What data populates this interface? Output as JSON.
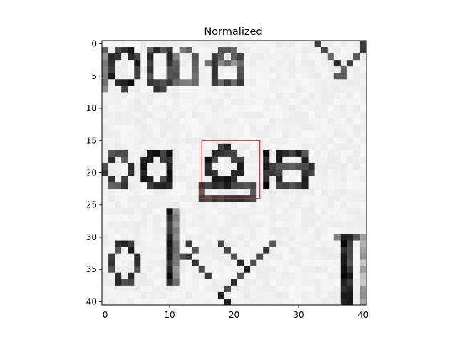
{
  "chart_data": {
    "type": "heatmap",
    "title": "Normalized",
    "xlabel": "",
    "ylabel": "",
    "x_range": [
      -0.5,
      40.5
    ],
    "y_range": [
      -0.5,
      40.5
    ],
    "y_inverted": true,
    "colormap": "gray",
    "grid": false,
    "xticks": [
      0,
      10,
      20,
      30,
      40
    ],
    "yticks": [
      0,
      5,
      10,
      15,
      20,
      25,
      30,
      35,
      40
    ],
    "rows": 41,
    "cols": 41,
    "image_content": "grayscale text crop showing the fragments \"ose v\", \"sage\", \"sky i\"",
    "annotations": [
      {
        "type": "rectangle",
        "x": [
          15,
          24
        ],
        "y": [
          15,
          24
        ],
        "color": "#d62728"
      }
    ]
  }
}
